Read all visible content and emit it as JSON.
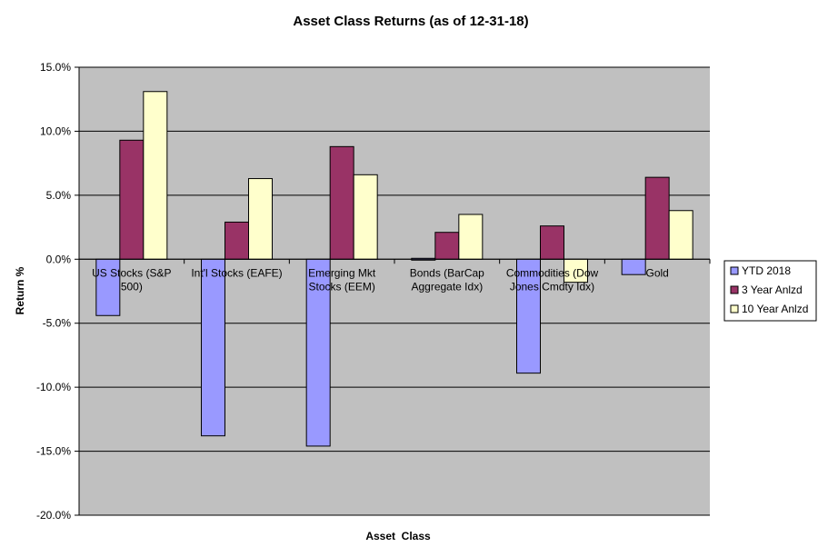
{
  "chart_data": {
    "type": "bar",
    "title": "Asset Class Returns (as of 12-31-18)",
    "xlabel": "Asset  Class",
    "ylabel": "Return %",
    "ylim": [
      -20,
      15
    ],
    "yticks": [
      15,
      10,
      5,
      0,
      -5,
      -10,
      -15,
      -20
    ],
    "ytick_labels": [
      "15.0%",
      "10.0%",
      "5.0%",
      "0.0%",
      "-5.0%",
      "-10.0%",
      "-15.0%",
      "-20.0%"
    ],
    "grid": true,
    "legend_position": "right",
    "plot_background": "#c0c0c0",
    "categories": [
      [
        "US Stocks (S&P",
        "500)"
      ],
      [
        "Int'l Stocks (EAFE)"
      ],
      [
        "Emerging Mkt",
        "Stocks (EEM)"
      ],
      [
        "Bonds (BarCap",
        "Aggregate Idx)"
      ],
      [
        "Commodities (Dow",
        "Jones Cmdty Idx)"
      ],
      [
        "Gold"
      ]
    ],
    "series": [
      {
        "name": "YTD 2018",
        "color": "#9999ff",
        "values": [
          -4.4,
          -13.8,
          -14.6,
          0.0,
          -8.9,
          -1.2
        ]
      },
      {
        "name": "3 Year Anlzd",
        "color": "#993366",
        "values": [
          9.3,
          2.9,
          8.8,
          2.1,
          2.6,
          6.4
        ]
      },
      {
        "name": "10 Year Anlzd",
        "color": "#ffffcc",
        "values": [
          13.1,
          6.3,
          6.6,
          3.5,
          -1.8,
          3.8
        ]
      }
    ]
  }
}
